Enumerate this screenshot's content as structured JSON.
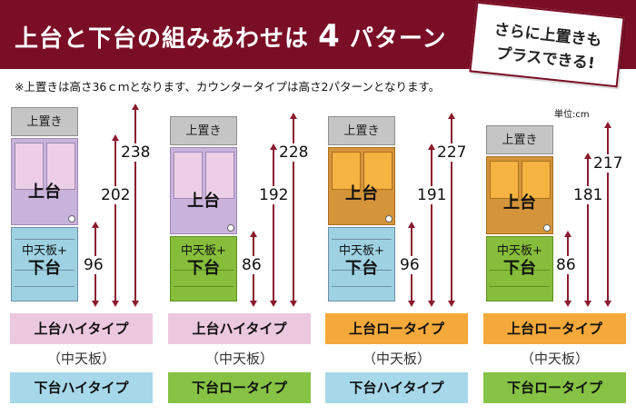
{
  "header": {
    "title_prefix": "上台と下台の組みあわせは",
    "title_num": "4",
    "title_suffix": "パターン"
  },
  "badge": {
    "line1": "さらに上置きも",
    "line2": "プラスできる!"
  },
  "note": "※上置きは高さ36ｃｍとなります、カウンタータイプは高さ2パターンとなります。",
  "unit_label": "単位:cm",
  "labels": {
    "kamioki": "上置き",
    "upper": "上台",
    "countertop": "中天板+",
    "lower": "下台"
  },
  "patterns": [
    {
      "dims": {
        "total": "238",
        "upper": "202",
        "lower": "96"
      },
      "upper_type": "上台ハイタイプ",
      "middle": "（中天板）",
      "lower_type": "下台ハイタイプ"
    },
    {
      "dims": {
        "total": "228",
        "upper": "192",
        "lower": "86"
      },
      "upper_type": "上台ハイタイプ",
      "middle": "（中天板）",
      "lower_type": "下台ロータイプ"
    },
    {
      "dims": {
        "total": "227",
        "upper": "191",
        "lower": "96"
      },
      "upper_type": "上台ロータイプ",
      "middle": "（中天板）",
      "lower_type": "下台ハイタイプ"
    },
    {
      "dims": {
        "total": "217",
        "upper": "181",
        "lower": "86"
      },
      "upper_type": "上台ロータイプ",
      "middle": "（中天板）",
      "lower_type": "下台ロータイプ"
    }
  ],
  "colors": {
    "header_bg": "#7a0e26",
    "upper_high": "#c9b2dc",
    "upper_high_door": "#eccfe6",
    "upper_low": "#d4943a",
    "upper_low_door": "#f5b341",
    "lower_high": "#9ed2e2",
    "lower_low": "#86bd3a",
    "tag_upper_high": "#ecc8df",
    "tag_upper_low": "#f5a93a",
    "tag_lower_high": "#a6d8ea",
    "tag_lower_low": "#86c244",
    "arrow": "#8b1a2e"
  }
}
